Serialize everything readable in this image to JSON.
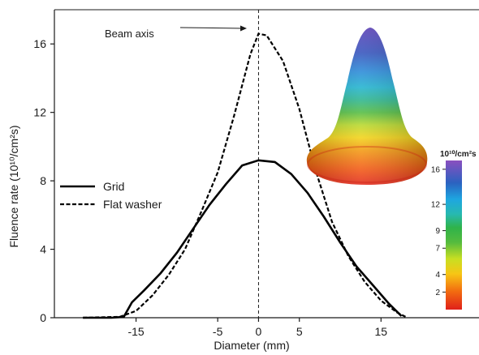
{
  "chart_data": {
    "type": "line",
    "xlabel": "Diameter (mm)",
    "ylabel": "Fluence rate (10¹⁰/cm²s)",
    "xlim": [
      -25,
      27
    ],
    "ylim": [
      0,
      18
    ],
    "xticks": [
      -15,
      -5,
      0,
      5,
      15
    ],
    "yticks": [
      0,
      4,
      8,
      12,
      16
    ],
    "grid": false,
    "legend_position": "middle-left",
    "annotation": {
      "text": "Beam axis",
      "x": 0
    },
    "series": [
      {
        "name": "Grid",
        "style": "solid",
        "color": "#000000",
        "x": [
          -21.5,
          -18,
          -16.5,
          -15.5,
          -14,
          -12,
          -10,
          -8,
          -6,
          -4,
          -2,
          0,
          2,
          4,
          6,
          8,
          10,
          12,
          14,
          16,
          17.5
        ],
        "y": [
          0,
          0,
          0.05,
          0.9,
          1.6,
          2.6,
          3.8,
          5.2,
          6.6,
          7.8,
          8.9,
          9.2,
          9.1,
          8.4,
          7.3,
          5.9,
          4.4,
          3.0,
          1.9,
          0.8,
          0.1
        ]
      },
      {
        "name": "Flat washer",
        "style": "dashed",
        "color": "#000000",
        "x": [
          -21.5,
          -17,
          -15,
          -13,
          -11,
          -9,
          -7,
          -5,
          -3,
          -1,
          0,
          1,
          3,
          5,
          7,
          9,
          11,
          13,
          15,
          17,
          18
        ],
        "y": [
          0,
          0.05,
          0.4,
          1.3,
          2.5,
          4.0,
          6.2,
          8.5,
          11.8,
          15.4,
          16.6,
          16.5,
          15.0,
          12.2,
          8.6,
          5.6,
          3.6,
          2.1,
          1.0,
          0.3,
          0.05
        ]
      }
    ],
    "inset": {
      "description_shown": "3D fluence surface",
      "colorbar_title": "10¹⁰/cm²s",
      "colorbar_ticks": [
        2,
        4,
        7,
        9,
        12,
        16
      ],
      "colorbar_range": [
        0,
        17
      ],
      "colors": [
        "#e0201a",
        "#f26a10",
        "#f7c615",
        "#e6e61a",
        "#8ac83c",
        "#2fb34a",
        "#27b9b0",
        "#1ea6e0",
        "#2b62c0",
        "#3a3fb0",
        "#6a4aba"
      ]
    }
  }
}
